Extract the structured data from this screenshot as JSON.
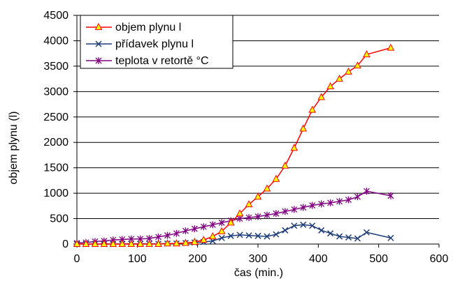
{
  "chart_data": {
    "type": "line",
    "title": "",
    "xlabel": "čas (min.)",
    "ylabel": "objem plynu (l)",
    "xlim": [
      0,
      600
    ],
    "ylim": [
      0,
      4500
    ],
    "xticks": [
      0,
      100,
      200,
      300,
      400,
      500,
      600
    ],
    "yticks": [
      0,
      500,
      1000,
      1500,
      2000,
      2500,
      3000,
      3500,
      4000,
      4500
    ],
    "grid": "horizontal",
    "legend_position": "top-left",
    "series": [
      {
        "name": "objem plynu l",
        "color": "#ff0000",
        "marker": "triangle",
        "marker_fill": "#ffff00",
        "x": [
          0,
          15,
          30,
          45,
          60,
          75,
          90,
          105,
          120,
          135,
          150,
          165,
          180,
          195,
          210,
          225,
          240,
          255,
          270,
          285,
          300,
          315,
          330,
          345,
          360,
          375,
          390,
          405,
          420,
          435,
          450,
          465,
          480,
          520
        ],
        "y": [
          0,
          0,
          0,
          0,
          0,
          0,
          0,
          0,
          0,
          0,
          10,
          10,
          20,
          40,
          80,
          150,
          250,
          420,
          600,
          780,
          930,
          1090,
          1280,
          1540,
          1890,
          2270,
          2640,
          2890,
          3100,
          3250,
          3390,
          3510,
          3730,
          3860
        ]
      },
      {
        "name": "přídavek  plynu l",
        "color": "#1f3d7a",
        "marker": "x",
        "x": [
          0,
          15,
          30,
          45,
          60,
          75,
          90,
          105,
          120,
          135,
          150,
          165,
          180,
          195,
          210,
          225,
          240,
          255,
          270,
          285,
          300,
          315,
          330,
          345,
          360,
          375,
          390,
          405,
          420,
          435,
          450,
          465,
          480,
          520
        ],
        "y": [
          0,
          0,
          0,
          0,
          0,
          5,
          5,
          5,
          5,
          5,
          10,
          10,
          20,
          30,
          40,
          60,
          120,
          160,
          180,
          170,
          160,
          150,
          190,
          270,
          360,
          380,
          360,
          270,
          210,
          150,
          130,
          110,
          230,
          120
        ]
      },
      {
        "name": "teplota v retortě °C",
        "color": "#800080",
        "marker": "star",
        "x": [
          0,
          15,
          30,
          45,
          60,
          75,
          90,
          105,
          120,
          135,
          150,
          165,
          180,
          195,
          210,
          225,
          240,
          255,
          270,
          285,
          300,
          315,
          330,
          345,
          360,
          375,
          390,
          405,
          420,
          435,
          450,
          465,
          480,
          520
        ],
        "y": [
          20,
          30,
          50,
          60,
          80,
          90,
          100,
          100,
          110,
          140,
          170,
          210,
          260,
          300,
          340,
          380,
          420,
          460,
          500,
          520,
          540,
          570,
          600,
          640,
          680,
          720,
          760,
          790,
          810,
          840,
          870,
          930,
          1040,
          950
        ]
      }
    ]
  }
}
